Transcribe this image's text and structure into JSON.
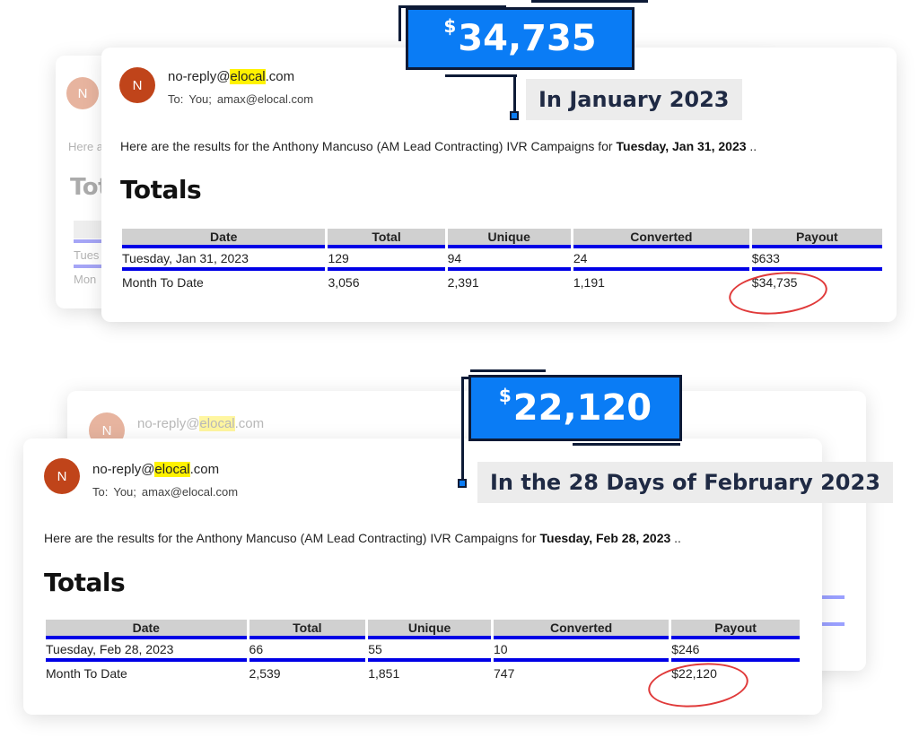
{
  "jan": {
    "badge_currency": "$",
    "badge_amount": "34,735",
    "caption": "In January 2023",
    "ghost": {
      "avatar": "N",
      "intro": "Here a",
      "title": "Tot",
      "row1": "Tues",
      "row2": "Mon"
    },
    "email": {
      "avatar": "N",
      "sender_user": "no-reply@",
      "sender_highlight": "elocal",
      "sender_domain": ".com",
      "to_label": "To:",
      "to_you": "You;",
      "to_addr": "amax@elocal.com",
      "intro_text": "Here are the results for the Anthony Mancuso (AM Lead Contracting) IVR Campaigns for ",
      "intro_date": "Tuesday, Jan 31, 2023",
      "intro_tail": " ..",
      "title": "Totals"
    },
    "table": {
      "headers": [
        "Date",
        "Total",
        "Unique",
        "Converted",
        "Payout"
      ],
      "rows": [
        [
          "Tuesday, Jan 31, 2023",
          "129",
          "94",
          "24",
          "$633"
        ],
        [
          "Month To Date",
          "3,056",
          "2,391",
          "1,191",
          "$34,735"
        ]
      ]
    }
  },
  "feb": {
    "badge_currency": "$",
    "badge_amount": "22,120",
    "caption": "In the 28 Days of February 2023",
    "ghost": {
      "avatar": "N",
      "sender_user": "no-reply@",
      "sender_highlight": "elocal",
      "sender_domain": ".com"
    },
    "email": {
      "avatar": "N",
      "sender_user": "no-reply@",
      "sender_highlight": "elocal",
      "sender_domain": ".com",
      "to_label": "To:",
      "to_you": "You;",
      "to_addr": "amax@elocal.com",
      "intro_text": "Here are the results for the Anthony Mancuso (AM Lead Contracting) IVR Campaigns for ",
      "intro_date": "Tuesday, Feb 28, 2023",
      "intro_tail": " ..",
      "title": "Totals"
    },
    "table": {
      "headers": [
        "Date",
        "Total",
        "Unique",
        "Converted",
        "Payout"
      ],
      "rows": [
        [
          "Tuesday, Feb 28, 2023",
          "66",
          "55",
          "10",
          "$246"
        ],
        [
          "Month To Date",
          "2,539",
          "1,851",
          "747",
          "$22,120"
        ]
      ]
    }
  },
  "colors": {
    "badge_blue": "#0a7cf5",
    "badge_navy": "#0d1a36",
    "table_rule": "#0000e6",
    "highlight": "#fff200",
    "circle_red": "#e03a3a",
    "avatar": "#c0441a"
  }
}
